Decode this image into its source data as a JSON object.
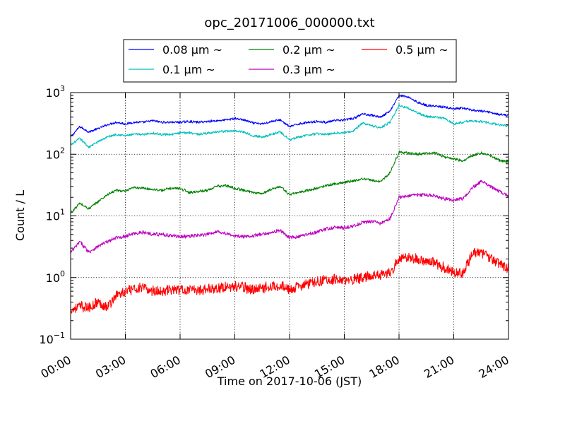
{
  "chart_data": {
    "type": "line",
    "title": "opc_20171006_000000.txt",
    "xlabel": "Time on 2017-10-06 (JST)",
    "ylabel": "Count / L",
    "xlim": [
      "00:00",
      "24:00"
    ],
    "ylim": [
      0.1,
      1000
    ],
    "y_scale": "log",
    "grid": true,
    "legend_position": "top-center",
    "x_ticks": [
      "00:00",
      "03:00",
      "06:00",
      "09:00",
      "12:00",
      "15:00",
      "18:00",
      "21:00",
      "24:00"
    ],
    "y_ticks": [
      "10^-1",
      "10^0",
      "10^1",
      "10^2",
      "10^3"
    ],
    "y_tick_labels": [
      {
        "base": "10",
        "exp": "−1"
      },
      {
        "base": "10",
        "exp": "0"
      },
      {
        "base": "10",
        "exp": "1"
      },
      {
        "base": "10",
        "exp": "2"
      },
      {
        "base": "10",
        "exp": "3"
      }
    ],
    "series": [
      {
        "name": "0.08 μm ~",
        "color": "#0000ff",
        "x": [
          "00:00",
          "00:30",
          "01:00",
          "01:30",
          "02:00",
          "02:30",
          "03:00",
          "03:30",
          "04:00",
          "04:30",
          "05:00",
          "05:30",
          "06:00",
          "06:30",
          "07:00",
          "07:30",
          "08:00",
          "08:30",
          "09:00",
          "09:30",
          "10:00",
          "10:30",
          "11:00",
          "11:30",
          "12:00",
          "12:30",
          "13:00",
          "13:30",
          "14:00",
          "14:30",
          "15:00",
          "15:30",
          "16:00",
          "16:30",
          "17:00",
          "17:30",
          "18:00",
          "18:30",
          "19:00",
          "19:30",
          "20:00",
          "20:30",
          "21:00",
          "21:30",
          "22:00",
          "22:30",
          "23:00",
          "23:30",
          "24:00"
        ],
        "y": [
          190,
          280,
          230,
          260,
          300,
          330,
          310,
          330,
          330,
          350,
          330,
          330,
          330,
          340,
          330,
          340,
          350,
          360,
          380,
          360,
          320,
          310,
          340,
          360,
          280,
          310,
          330,
          340,
          330,
          350,
          360,
          380,
          450,
          430,
          400,
          500,
          900,
          850,
          700,
          620,
          600,
          580,
          540,
          560,
          520,
          500,
          480,
          440,
          430
        ]
      },
      {
        "name": "0.1 μm ~",
        "color": "#00bfbf",
        "x": [
          "00:00",
          "00:30",
          "01:00",
          "01:30",
          "02:00",
          "02:30",
          "03:00",
          "03:30",
          "04:00",
          "04:30",
          "05:00",
          "05:30",
          "06:00",
          "06:30",
          "07:00",
          "07:30",
          "08:00",
          "08:30",
          "09:00",
          "09:30",
          "10:00",
          "10:30",
          "11:00",
          "11:30",
          "12:00",
          "12:30",
          "13:00",
          "13:30",
          "14:00",
          "14:30",
          "15:00",
          "15:30",
          "16:00",
          "16:30",
          "17:00",
          "17:30",
          "18:00",
          "18:30",
          "19:00",
          "19:30",
          "20:00",
          "20:30",
          "21:00",
          "21:30",
          "22:00",
          "22:30",
          "23:00",
          "23:30",
          "24:00"
        ],
        "y": [
          140,
          180,
          130,
          160,
          190,
          210,
          200,
          210,
          210,
          220,
          210,
          210,
          220,
          225,
          210,
          220,
          230,
          235,
          240,
          230,
          200,
          190,
          210,
          230,
          170,
          190,
          205,
          215,
          210,
          220,
          225,
          240,
          320,
          290,
          270,
          330,
          620,
          560,
          470,
          410,
          400,
          380,
          310,
          330,
          350,
          340,
          320,
          300,
          290
        ]
      },
      {
        "name": "0.2 μm ~",
        "color": "#008000",
        "x": [
          "00:00",
          "00:30",
          "01:00",
          "01:30",
          "02:00",
          "02:30",
          "03:00",
          "03:30",
          "04:00",
          "04:30",
          "05:00",
          "05:30",
          "06:00",
          "06:30",
          "07:00",
          "07:30",
          "08:00",
          "08:30",
          "09:00",
          "09:30",
          "10:00",
          "10:30",
          "11:00",
          "11:30",
          "12:00",
          "12:30",
          "13:00",
          "13:30",
          "14:00",
          "14:30",
          "15:00",
          "15:30",
          "16:00",
          "16:30",
          "17:00",
          "17:30",
          "18:00",
          "18:30",
          "19:00",
          "19:30",
          "20:00",
          "20:30",
          "21:00",
          "21:30",
          "22:00",
          "22:30",
          "23:00",
          "23:30",
          "24:00"
        ],
        "y": [
          11,
          16,
          13,
          17,
          22,
          26,
          25,
          29,
          28,
          27,
          26,
          28,
          28,
          24,
          25,
          26,
          30,
          31,
          28,
          26,
          24,
          23,
          27,
          30,
          22,
          24,
          26,
          28,
          31,
          33,
          35,
          37,
          40,
          38,
          36,
          50,
          108,
          104,
          100,
          103,
          105,
          90,
          84,
          78,
          95,
          105,
          95,
          80,
          75
        ]
      },
      {
        "name": "0.3 μm ~",
        "color": "#bf00bf",
        "x": [
          "00:00",
          "00:30",
          "01:00",
          "01:30",
          "02:00",
          "02:30",
          "03:00",
          "03:30",
          "04:00",
          "04:30",
          "05:00",
          "05:30",
          "06:00",
          "06:30",
          "07:00",
          "07:30",
          "08:00",
          "08:30",
          "09:00",
          "09:30",
          "10:00",
          "10:30",
          "11:00",
          "11:30",
          "12:00",
          "12:30",
          "13:00",
          "13:30",
          "14:00",
          "14:30",
          "15:00",
          "15:30",
          "16:00",
          "16:30",
          "17:00",
          "17:30",
          "18:00",
          "18:30",
          "19:00",
          "19:30",
          "20:00",
          "20:30",
          "21:00",
          "21:30",
          "22:00",
          "22:30",
          "23:00",
          "23:30",
          "24:00"
        ],
        "y": [
          2.5,
          3.8,
          2.6,
          3.2,
          3.8,
          4.4,
          4.7,
          5.2,
          5.4,
          5.1,
          5.0,
          4.8,
          4.6,
          4.7,
          4.8,
          5.0,
          5.6,
          5.2,
          4.7,
          4.6,
          4.8,
          5.0,
          5.4,
          5.8,
          4.4,
          4.6,
          5.0,
          5.5,
          6.1,
          6.5,
          6.4,
          6.8,
          7.8,
          8.2,
          7.5,
          9.0,
          20,
          21,
          22,
          22,
          21,
          19,
          18,
          19,
          28,
          36,
          30,
          25,
          21
        ]
      },
      {
        "name": "0.5 μm ~",
        "color": "#ff0000",
        "x": [
          "00:00",
          "00:30",
          "01:00",
          "01:30",
          "02:00",
          "02:30",
          "03:00",
          "03:30",
          "04:00",
          "04:30",
          "05:00",
          "05:30",
          "06:00",
          "06:30",
          "07:00",
          "07:30",
          "08:00",
          "08:30",
          "09:00",
          "09:30",
          "10:00",
          "10:30",
          "11:00",
          "11:30",
          "12:00",
          "12:30",
          "13:00",
          "13:30",
          "14:00",
          "14:30",
          "15:00",
          "15:30",
          "16:00",
          "16:30",
          "17:00",
          "17:30",
          "18:00",
          "18:30",
          "19:00",
          "19:30",
          "20:00",
          "20:30",
          "21:00",
          "21:30",
          "22:00",
          "22:30",
          "23:00",
          "23:30",
          "24:00"
        ],
        "y": [
          0.3,
          0.34,
          0.32,
          0.4,
          0.33,
          0.52,
          0.58,
          0.66,
          0.67,
          0.61,
          0.6,
          0.63,
          0.64,
          0.62,
          0.63,
          0.66,
          0.67,
          0.7,
          0.72,
          0.69,
          0.64,
          0.67,
          0.73,
          0.75,
          0.63,
          0.72,
          0.79,
          0.86,
          0.91,
          0.95,
          0.87,
          0.92,
          1.0,
          1.08,
          1.12,
          1.15,
          2.0,
          2.1,
          2.0,
          1.85,
          1.7,
          1.45,
          1.25,
          1.15,
          2.4,
          2.6,
          2.1,
          1.6,
          1.4
        ]
      }
    ]
  }
}
